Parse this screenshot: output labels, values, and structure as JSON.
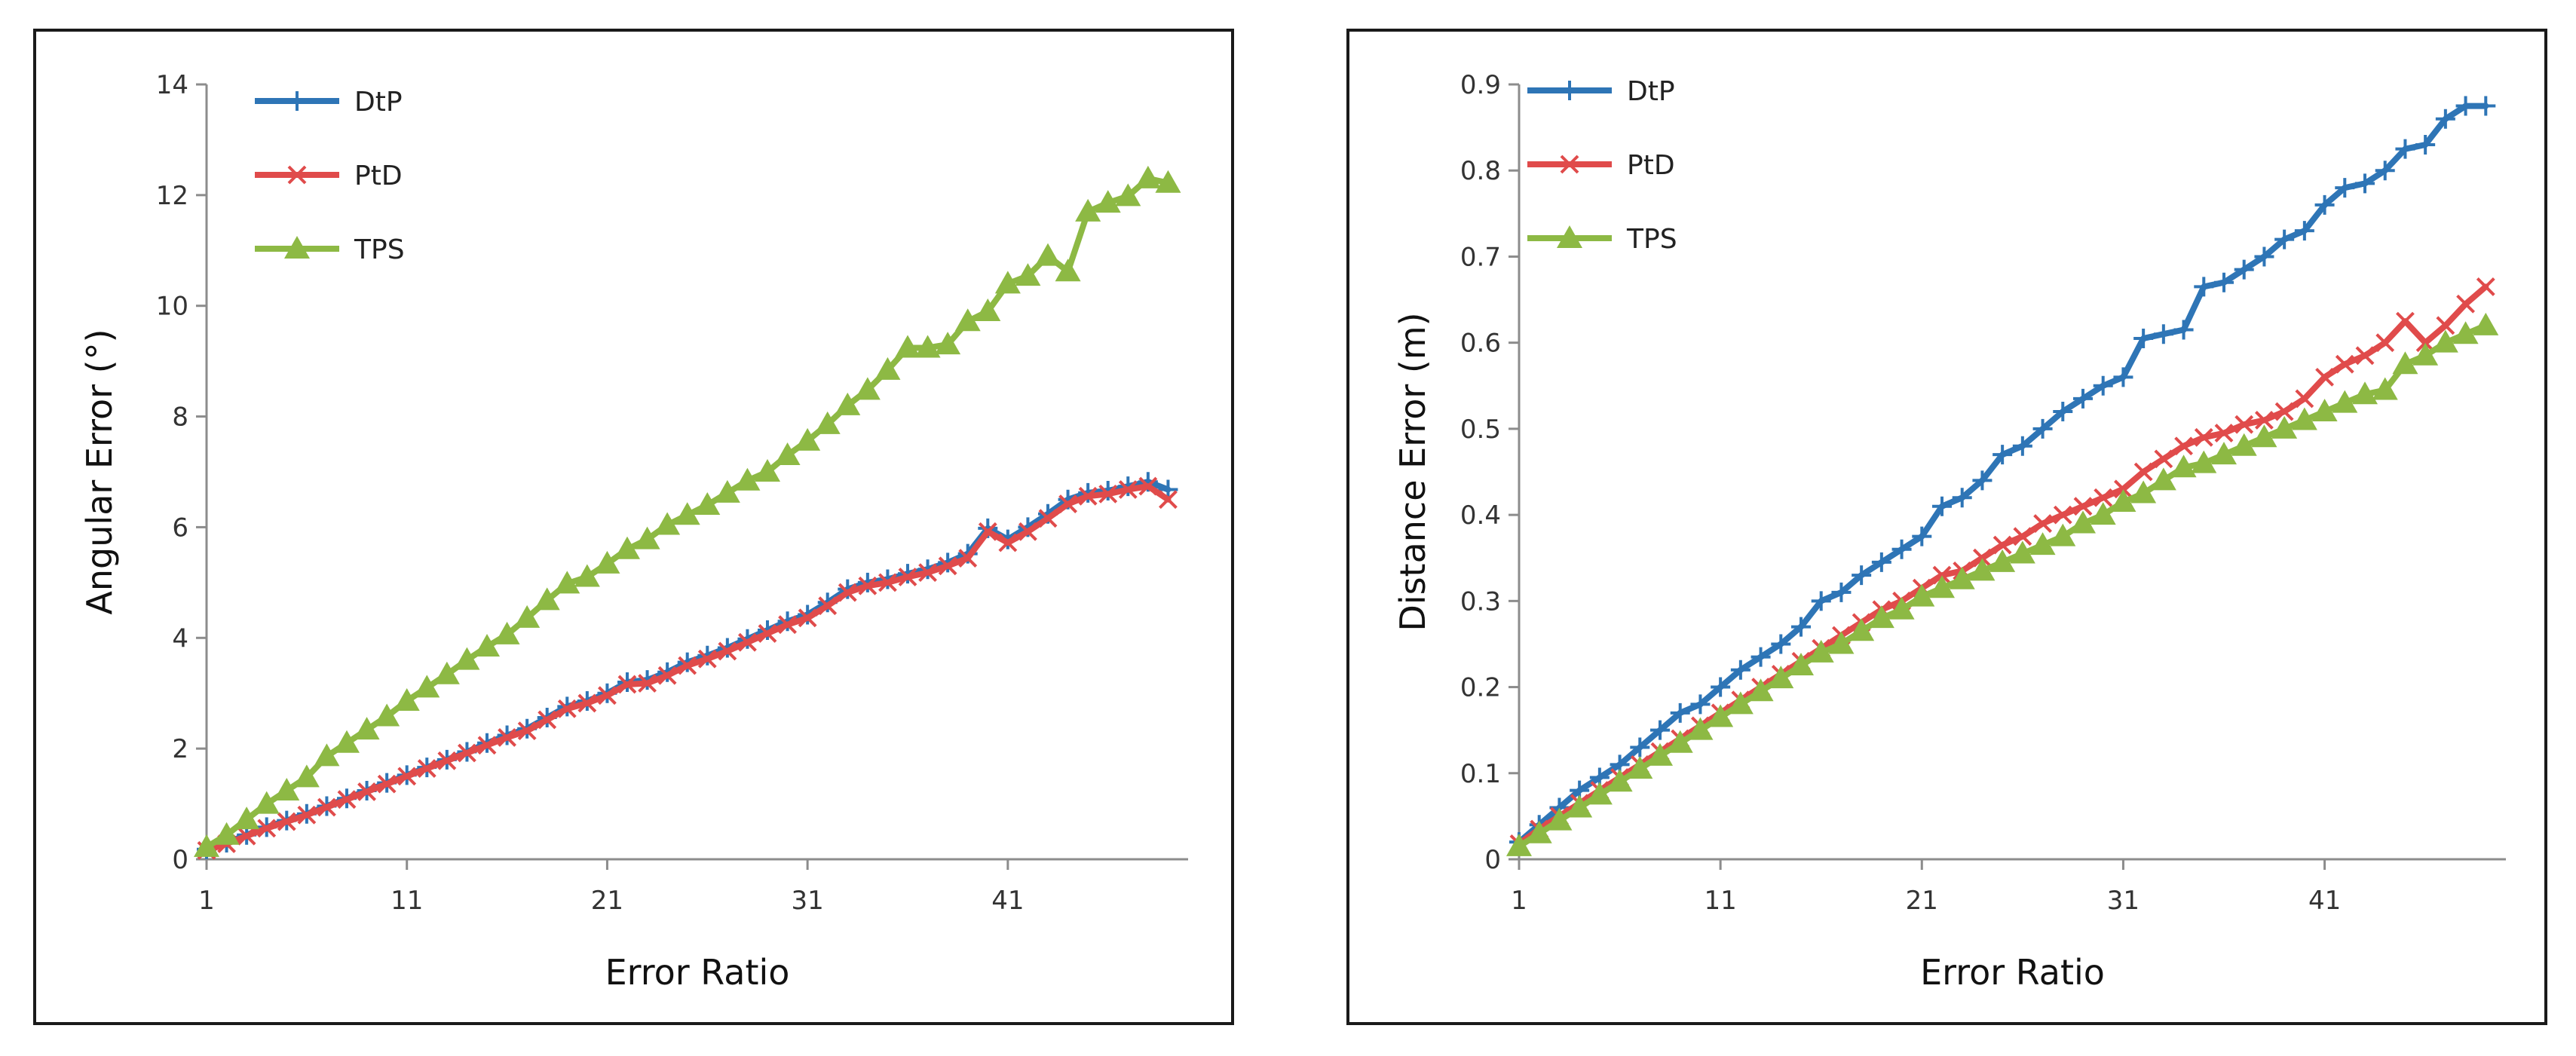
{
  "chart_data": [
    {
      "type": "line",
      "xlabel": "Error Ratio",
      "ylabel": "Angular Error (°)",
      "ylim": [
        0,
        14
      ],
      "yticks": [
        "0",
        "2",
        "4",
        "6",
        "8",
        "10",
        "12",
        "14"
      ],
      "xticks": [
        "1",
        "11",
        "21",
        "31",
        "41"
      ],
      "xlim": [
        1,
        50
      ],
      "grid": false,
      "legend_position": "top-left",
      "x_start": 1,
      "series": [
        {
          "name": "DtP",
          "color": "#2E75B6",
          "marker": "plus",
          "values": [
            0.18,
            0.3,
            0.44,
            0.58,
            0.7,
            0.82,
            0.96,
            1.1,
            1.24,
            1.38,
            1.52,
            1.66,
            1.8,
            1.94,
            2.1,
            2.24,
            2.36,
            2.56,
            2.76,
            2.86,
            3.0,
            3.2,
            3.24,
            3.38,
            3.56,
            3.68,
            3.82,
            3.98,
            4.14,
            4.3,
            4.42,
            4.64,
            4.88,
            5.0,
            5.06,
            5.16,
            5.24,
            5.36,
            5.52,
            5.98,
            5.78,
            6.0,
            6.24,
            6.5,
            6.62,
            6.66,
            6.74,
            6.82,
            6.68
          ]
        },
        {
          "name": "PtD",
          "color": "#E04B4B",
          "marker": "x",
          "values": [
            0.16,
            0.28,
            0.42,
            0.56,
            0.68,
            0.8,
            0.94,
            1.08,
            1.22,
            1.36,
            1.5,
            1.64,
            1.78,
            1.92,
            2.06,
            2.2,
            2.32,
            2.52,
            2.72,
            2.82,
            2.96,
            3.16,
            3.18,
            3.32,
            3.5,
            3.62,
            3.76,
            3.92,
            4.08,
            4.24,
            4.36,
            4.58,
            4.82,
            4.94,
            5.0,
            5.1,
            5.18,
            5.3,
            5.44,
            5.92,
            5.72,
            5.92,
            6.16,
            6.42,
            6.56,
            6.6,
            6.68,
            6.74,
            6.5
          ]
        },
        {
          "name": "TPS",
          "color": "#8DB944",
          "marker": "triangle",
          "values": [
            0.22,
            0.44,
            0.72,
            1.0,
            1.24,
            1.48,
            1.86,
            2.1,
            2.34,
            2.58,
            2.86,
            3.1,
            3.34,
            3.6,
            3.84,
            4.06,
            4.36,
            4.68,
            4.98,
            5.1,
            5.34,
            5.6,
            5.78,
            6.04,
            6.22,
            6.4,
            6.62,
            6.84,
            7.0,
            7.3,
            7.56,
            7.86,
            8.2,
            8.48,
            8.84,
            9.24,
            9.24,
            9.3,
            9.72,
            9.9,
            10.4,
            10.54,
            10.9,
            10.62,
            11.7,
            11.86,
            11.98,
            12.3,
            12.22
          ]
        }
      ]
    },
    {
      "type": "line",
      "xlabel": "Error Ratio",
      "ylabel": "Distance Error (m)",
      "ylim": [
        0,
        0.9
      ],
      "yticks": [
        "0",
        "0.1",
        "0.2",
        "0.3",
        "0.4",
        "0.5",
        "0.6",
        "0.7",
        "0.8",
        "0.9"
      ],
      "xticks": [
        "1",
        "11",
        "21",
        "31",
        "41"
      ],
      "xlim": [
        1,
        50
      ],
      "grid": false,
      "legend_position": "top-left",
      "x_start": 1,
      "series": [
        {
          "name": "DtP",
          "color": "#2E75B6",
          "marker": "plus",
          "values": [
            0.02,
            0.04,
            0.06,
            0.08,
            0.095,
            0.11,
            0.13,
            0.15,
            0.17,
            0.18,
            0.2,
            0.22,
            0.235,
            0.25,
            0.27,
            0.3,
            0.31,
            0.33,
            0.345,
            0.36,
            0.375,
            0.41,
            0.42,
            0.44,
            0.47,
            0.48,
            0.5,
            0.52,
            0.535,
            0.55,
            0.56,
            0.605,
            0.61,
            0.615,
            0.665,
            0.67,
            0.685,
            0.7,
            0.72,
            0.73,
            0.76,
            0.78,
            0.785,
            0.8,
            0.825,
            0.83,
            0.86,
            0.875,
            0.875
          ]
        },
        {
          "name": "PtD",
          "color": "#E04B4B",
          "marker": "x",
          "values": [
            0.018,
            0.035,
            0.05,
            0.065,
            0.08,
            0.095,
            0.11,
            0.125,
            0.14,
            0.155,
            0.17,
            0.185,
            0.2,
            0.215,
            0.23,
            0.245,
            0.26,
            0.275,
            0.29,
            0.3,
            0.315,
            0.33,
            0.335,
            0.35,
            0.365,
            0.375,
            0.39,
            0.4,
            0.41,
            0.42,
            0.43,
            0.45,
            0.465,
            0.48,
            0.49,
            0.495,
            0.505,
            0.51,
            0.52,
            0.535,
            0.56,
            0.575,
            0.585,
            0.6,
            0.625,
            0.6,
            0.62,
            0.645,
            0.665
          ]
        },
        {
          "name": "TPS",
          "color": "#8DB944",
          "marker": "triangle",
          "values": [
            0.015,
            0.03,
            0.045,
            0.06,
            0.075,
            0.09,
            0.105,
            0.12,
            0.135,
            0.15,
            0.165,
            0.18,
            0.195,
            0.21,
            0.225,
            0.24,
            0.25,
            0.265,
            0.28,
            0.29,
            0.305,
            0.315,
            0.325,
            0.335,
            0.345,
            0.355,
            0.365,
            0.375,
            0.39,
            0.4,
            0.415,
            0.425,
            0.44,
            0.455,
            0.46,
            0.47,
            0.48,
            0.49,
            0.5,
            0.51,
            0.52,
            0.53,
            0.54,
            0.545,
            0.575,
            0.585,
            0.6,
            0.61,
            0.62
          ]
        }
      ]
    }
  ]
}
